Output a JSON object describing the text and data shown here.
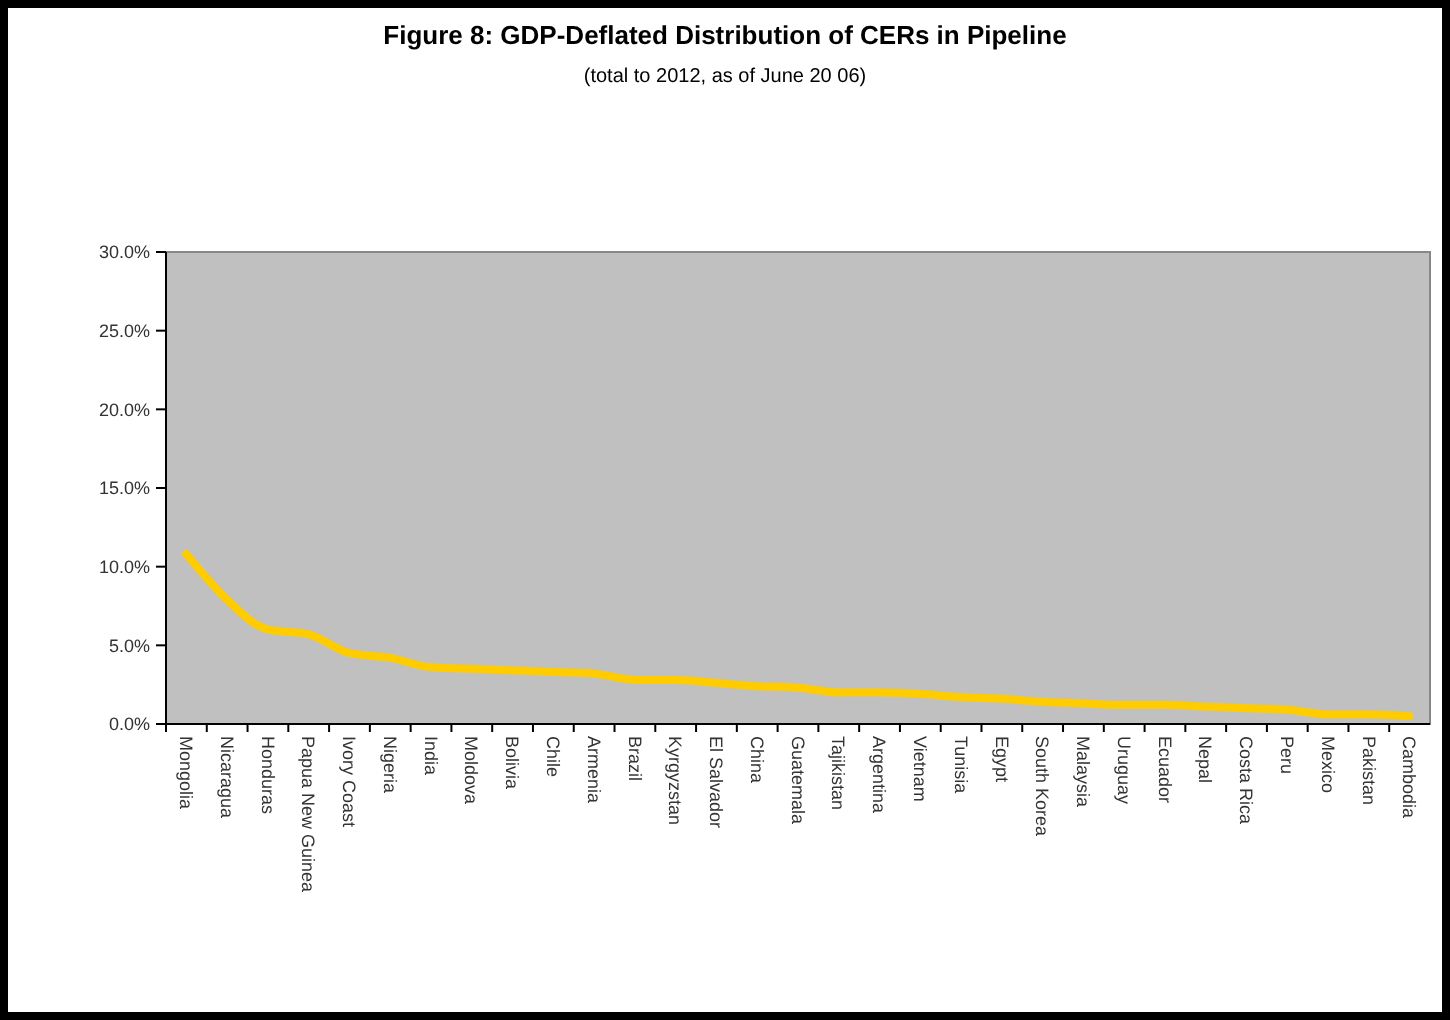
{
  "chart_data": {
    "type": "line",
    "title": "Figure 8: GDP-Deflated Distribution of CERs in Pipeline",
    "subtitle": "(total to 2012, as of June 20 06)",
    "categories": [
      "Mongolia",
      "Nicaragua",
      "Honduras",
      "Papua New Guinea",
      "Ivory Coast",
      "Nigeria",
      "India",
      "Moldova",
      "Bolivia",
      "Chile",
      "Armenia",
      "Brazil",
      "Kyrgyzstan",
      "El Salvador",
      "China",
      "Guatemala",
      "Tajikistan",
      "Argentina",
      "Vietnam",
      "Tunisia",
      "Egypt",
      "South Korea",
      "Malaysia",
      "Uruguay",
      "Ecuador",
      "Nepal",
      "Costa Rica",
      "Peru",
      "Mexico",
      "Pakistan",
      "Cambodia"
    ],
    "series": [
      {
        "color": "#ffcc00",
        "values": [
          10.8,
          7.9,
          6.0,
          5.7,
          4.5,
          4.2,
          3.6,
          3.5,
          3.4,
          3.3,
          3.2,
          2.8,
          2.8,
          2.6,
          2.4,
          2.3,
          2.0,
          2.0,
          1.9,
          1.7,
          1.6,
          1.4,
          1.3,
          1.2,
          1.2,
          1.1,
          1.0,
          0.9,
          0.6,
          0.6,
          0.5
        ]
      }
    ],
    "ylim": [
      0,
      30
    ],
    "yticks": [
      {
        "value": 0,
        "label": "0.0%"
      },
      {
        "value": 5,
        "label": "5.0%"
      },
      {
        "value": 10,
        "label": "10.0%"
      },
      {
        "value": 15,
        "label": "15.0%"
      },
      {
        "value": 20,
        "label": "20.0%"
      },
      {
        "value": 25,
        "label": "25.0%"
      },
      {
        "value": 30,
        "label": "30.0%"
      }
    ],
    "marker": "none",
    "line_style": "solid"
  }
}
